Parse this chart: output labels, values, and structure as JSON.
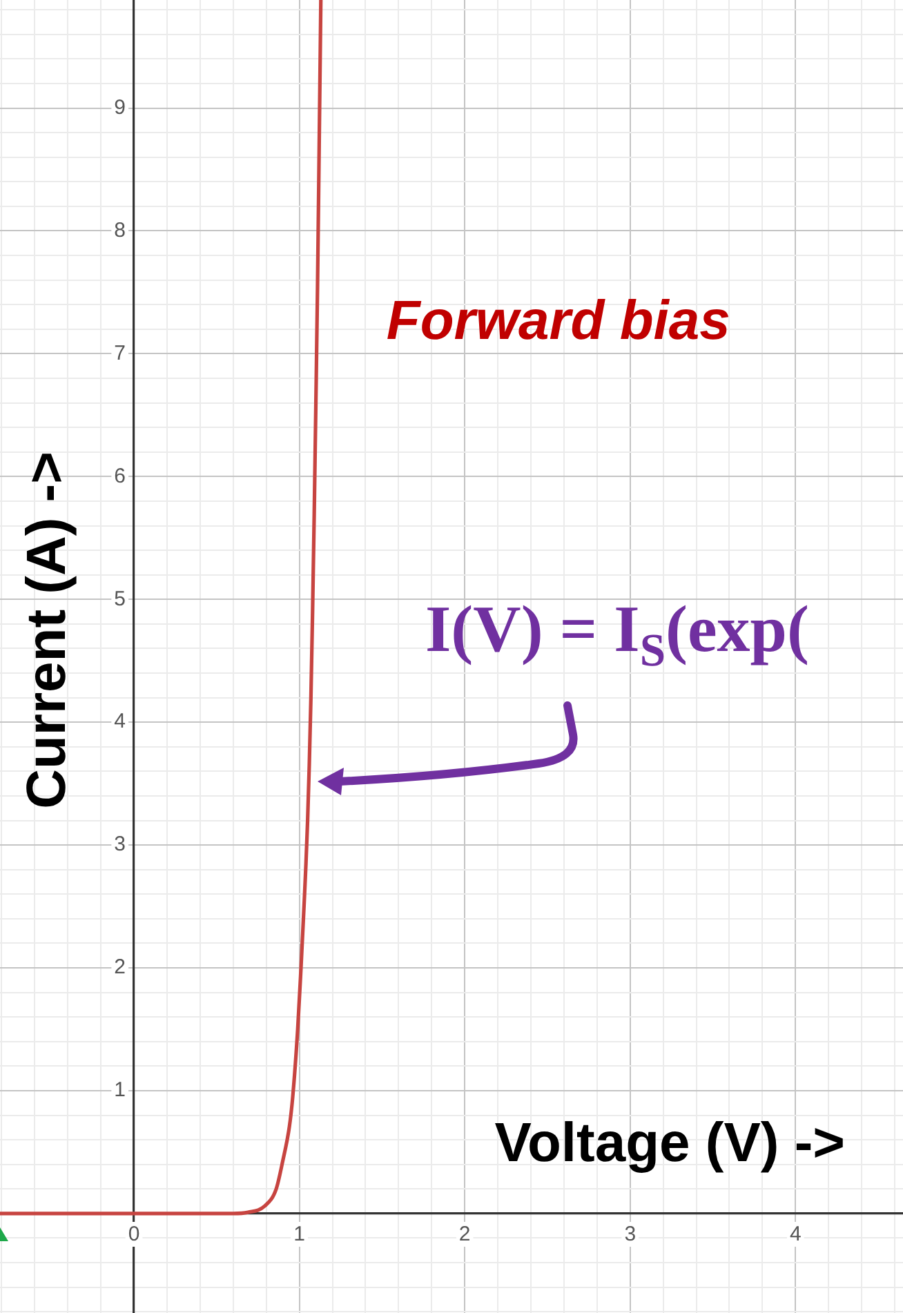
{
  "chart_data": {
    "type": "line",
    "x": [
      -0.81,
      0.6,
      0.69,
      0.79,
      0.86,
      0.9,
      0.94,
      0.96,
      0.99,
      1.01,
      1.03,
      1.04,
      1.05,
      1.06,
      1.07,
      1.08,
      1.09,
      1.1,
      1.11,
      1.12,
      1.13
    ],
    "series": [
      {
        "color": "#c74440",
        "values": [
          0,
          0,
          0.01,
          0.06,
          0.2,
          0.43,
          0.71,
          0.95,
          1.5,
          2.0,
          2.55,
          2.85,
          3.2,
          3.65,
          4.2,
          4.9,
          5.7,
          6.6,
          7.55,
          8.7,
          9.88
        ]
      }
    ],
    "xlabel": "Voltage (V) ->",
    "ylabel": "Current (A) ->",
    "annotations": [
      "Forward bias",
      {
        "text": "I(V) = I$_{S}$(exp(",
        "x": 1.06,
        "y": 3.5
      }
    ],
    "xlim": [
      -0.81,
      4.65
    ],
    "ylim": [
      -0.81,
      9.88
    ],
    "xticks": [
      {
        "value": -0.8,
        "label": null
      },
      {
        "value": -0.6,
        "label": null
      },
      {
        "value": -0.4,
        "label": null
      },
      {
        "value": -0.2,
        "label": null
      },
      0,
      {
        "value": 0.2,
        "label": null
      },
      {
        "value": 0.4,
        "label": null
      },
      {
        "value": 0.6,
        "label": null
      },
      {
        "value": 0.8,
        "label": null
      },
      1,
      {
        "value": 1.2,
        "label": null
      },
      {
        "value": 1.4,
        "label": null
      },
      {
        "value": 1.6,
        "label": null
      },
      {
        "value": 1.8,
        "label": null
      },
      2,
      {
        "value": 2.2,
        "label": null
      },
      {
        "value": 2.4,
        "label": null
      },
      {
        "value": 2.6,
        "label": null
      },
      {
        "value": 2.8,
        "label": null
      },
      3,
      {
        "value": 3.2,
        "label": null
      },
      {
        "value": 3.4,
        "label": null
      },
      {
        "value": 3.6,
        "label": null
      },
      {
        "value": 3.8,
        "label": null
      },
      4,
      {
        "value": 4.2,
        "label": null
      },
      {
        "value": 4.4,
        "label": null
      },
      {
        "value": 4.6,
        "label": null
      }
    ],
    "yticks": [
      {
        "value": -0.8,
        "label": null
      },
      {
        "value": -0.6,
        "label": null
      },
      {
        "value": -0.4,
        "label": null
      },
      {
        "value": -0.2,
        "label": null
      },
      {
        "value": 0,
        "label": null
      },
      {
        "value": 0.2,
        "label": null
      },
      {
        "value": 0.4,
        "label": null
      },
      {
        "value": 0.6,
        "label": null
      },
      {
        "value": 0.8,
        "label": null
      },
      1,
      {
        "value": 1.2,
        "label": null
      },
      {
        "value": 1.4,
        "label": null
      },
      {
        "value": 1.6,
        "label": null
      },
      {
        "value": 1.8,
        "label": null
      },
      2,
      {
        "value": 2.2,
        "label": null
      },
      {
        "value": 2.4,
        "label": null
      },
      {
        "value": 2.6,
        "label": null
      },
      {
        "value": 2.8,
        "label": null
      },
      3,
      {
        "value": 3.2,
        "label": null
      },
      {
        "value": 3.4,
        "label": null
      },
      {
        "value": 3.6,
        "label": null
      },
      {
        "value": 3.8,
        "label": null
      },
      4,
      {
        "value": 4.2,
        "label": null
      },
      {
        "value": 4.4,
        "label": null
      },
      {
        "value": 4.6,
        "label": null
      },
      {
        "value": 4.8,
        "label": null
      },
      5,
      {
        "value": 5.2,
        "label": null
      },
      {
        "value": 5.4,
        "label": null
      },
      {
        "value": 5.6,
        "label": null
      },
      {
        "value": 5.8,
        "label": null
      },
      6,
      {
        "value": 6.2,
        "label": null
      },
      {
        "value": 6.4,
        "label": null
      },
      {
        "value": 6.6,
        "label": null
      },
      {
        "value": 6.8,
        "label": null
      },
      7,
      {
        "value": 7.2,
        "label": null
      },
      {
        "value": 7.4,
        "label": null
      },
      {
        "value": 7.6,
        "label": null
      },
      {
        "value": 7.8,
        "label": null
      },
      8,
      {
        "value": 8.2,
        "label": null
      },
      {
        "value": 8.4,
        "label": null
      },
      {
        "value": 8.6,
        "label": null
      },
      {
        "value": 8.8,
        "label": null
      },
      9,
      {
        "value": 9.2,
        "label": null
      },
      {
        "value": 9.4,
        "label": null
      },
      {
        "value": 9.6,
        "label": null
      },
      {
        "value": 9.8,
        "label": null
      }
    ],
    "grid": true,
    "marker": "none",
    "line_style": "solid"
  }
}
